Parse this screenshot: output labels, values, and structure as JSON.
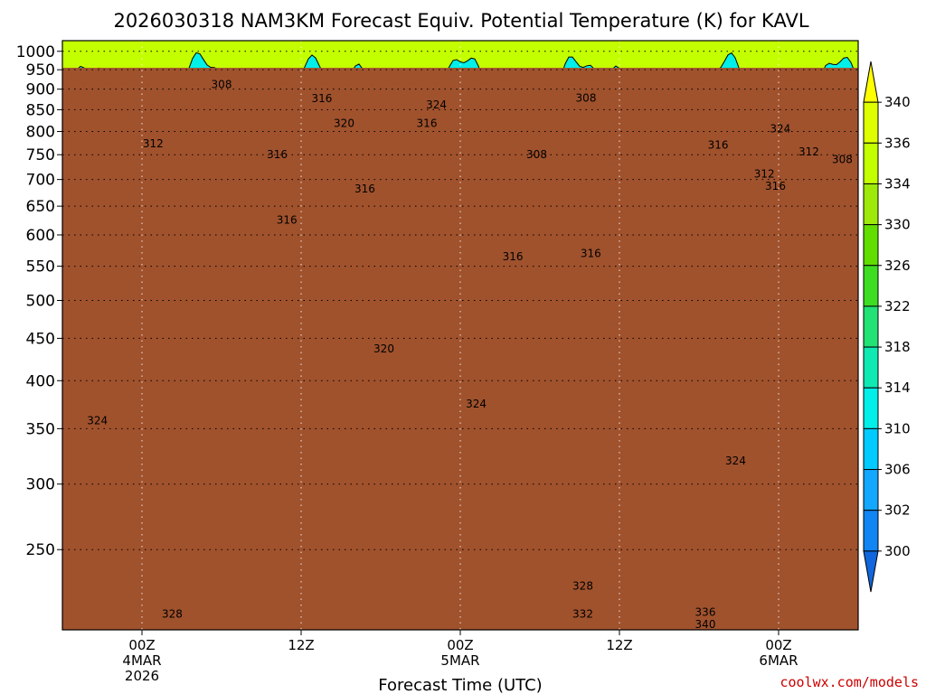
{
  "chart_data": {
    "type": "heatmap",
    "title": "2026030318 NAM3KM Forecast Equiv. Potential Temperature (K) for KAVL",
    "xlabel": "Forecast Time (UTC)",
    "ylabel": "",
    "credit": "coolwx.com/models",
    "x_range_hours": [
      -5,
      45
    ],
    "x_ticks": [
      {
        "hours": 0,
        "lines": [
          "00Z",
          "4MAR",
          "2026"
        ]
      },
      {
        "hours": 10,
        "lines": [
          "12Z"
        ]
      },
      {
        "hours": 20,
        "lines": [
          "00Z",
          "5MAR"
        ]
      },
      {
        "hours": 30,
        "lines": [
          "12Z"
        ]
      },
      {
        "hours": 40,
        "lines": [
          "00Z",
          "6MAR"
        ]
      }
    ],
    "y_axis": {
      "scale": "log",
      "unit": "hPa",
      "range": [
        1030,
        200
      ],
      "ticks": [
        250,
        300,
        350,
        400,
        450,
        500,
        550,
        600,
        650,
        700,
        750,
        800,
        850,
        900,
        950,
        1000
      ]
    },
    "surface_pressure_hpa": 955,
    "colorbar": {
      "labels": [
        340,
        336,
        334,
        330,
        326,
        322,
        318,
        314,
        310,
        306,
        302,
        300
      ],
      "colors": [
        "#ffff00",
        "#dfff00",
        "#c4ff00",
        "#9ee80a",
        "#62dd00",
        "#3edd22",
        "#22e276",
        "#11e9b3",
        "#00efe8",
        "#00caff",
        "#13a7ff",
        "#1185f4",
        "#1166dd"
      ]
    },
    "contour_interval": 2,
    "contour_labels": [
      {
        "value": "340",
        "hours": 35.4,
        "p": 203
      },
      {
        "value": "336",
        "hours": 35.4,
        "p": 210
      },
      {
        "value": "332",
        "hours": 27.7,
        "p": 209
      },
      {
        "value": "328",
        "hours": 1.9,
        "p": 209
      },
      {
        "value": "328",
        "hours": 27.7,
        "p": 226
      },
      {
        "value": "324",
        "hours": 37.3,
        "p": 320
      },
      {
        "value": "324",
        "hours": 21.0,
        "p": 375
      },
      {
        "value": "324",
        "hours": -2.8,
        "p": 358
      },
      {
        "value": "320",
        "hours": 15.2,
        "p": 437
      },
      {
        "value": "316",
        "hours": 23.3,
        "p": 565
      },
      {
        "value": "316",
        "hours": 28.2,
        "p": 570
      },
      {
        "value": "316",
        "hours": 9.1,
        "p": 625
      },
      {
        "value": "316",
        "hours": 14.0,
        "p": 682
      },
      {
        "value": "316",
        "hours": 39.8,
        "p": 687
      },
      {
        "value": "316",
        "hours": 8.5,
        "p": 750
      },
      {
        "value": "316",
        "hours": 36.2,
        "p": 770
      },
      {
        "value": "316",
        "hours": 17.9,
        "p": 818
      },
      {
        "value": "316",
        "hours": 11.3,
        "p": 877
      },
      {
        "value": "312",
        "hours": 0.7,
        "p": 773
      },
      {
        "value": "312",
        "hours": 39.1,
        "p": 711
      },
      {
        "value": "312",
        "hours": 41.9,
        "p": 756
      },
      {
        "value": "320",
        "hours": 12.7,
        "p": 818
      },
      {
        "value": "324",
        "hours": 18.5,
        "p": 862
      },
      {
        "value": "324",
        "hours": 40.1,
        "p": 806
      },
      {
        "value": "308",
        "hours": 24.8,
        "p": 750
      },
      {
        "value": "308",
        "hours": 44.0,
        "p": 740
      },
      {
        "value": "308",
        "hours": 5.0,
        "p": 912
      },
      {
        "value": "308",
        "hours": 27.9,
        "p": 878
      }
    ]
  }
}
